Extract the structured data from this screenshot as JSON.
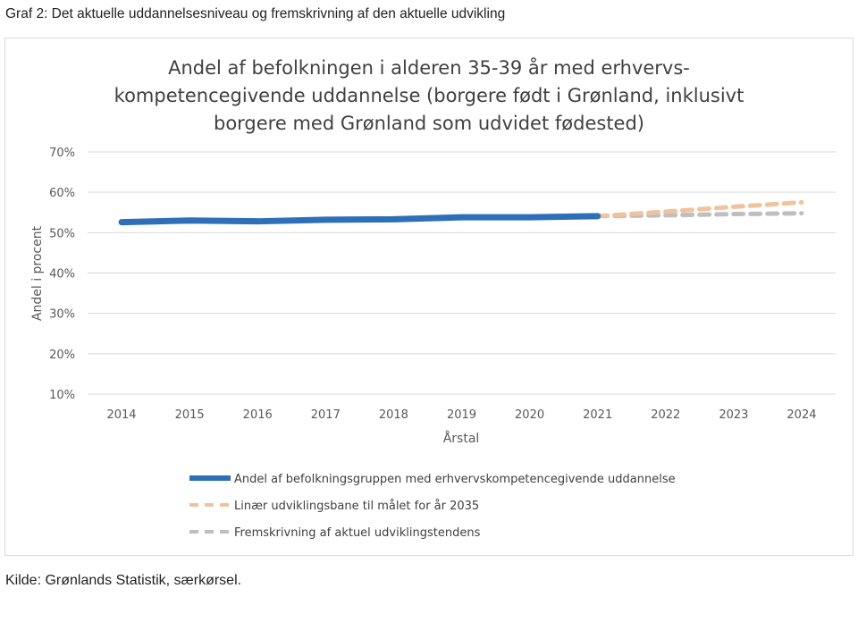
{
  "caption": "Graf 2: Det aktuelle uddannelsesniveau og fremskrivning af den aktuelle udvikling",
  "source": "Kilde: Grønlands Statistik, særkørsel.",
  "chart_data": {
    "type": "line",
    "title_lines": [
      "Andel af befolkningen i alderen 35-39 år med erhvervs-",
      "kompetencegivende uddannelse (borgere født i Grønland, inklusivt",
      "borgere med Grønland som udvidet fødested)"
    ],
    "xlabel": "Årstal",
    "ylabel": "Andel i procent",
    "categories": [
      "2014",
      "2015",
      "2016",
      "2017",
      "2018",
      "2019",
      "2020",
      "2021",
      "2022",
      "2023",
      "2024"
    ],
    "yticks": [
      "10%",
      "20%",
      "30%",
      "40%",
      "50%",
      "60%",
      "70%"
    ],
    "ylim": [
      10,
      70
    ],
    "grid": true,
    "legend_position": "bottom",
    "series": [
      {
        "name": "Andel af befolkningsgruppen med erhvervskompetencegivende uddannelse",
        "color": "#2e6fba",
        "style": "solid",
        "values": [
          52.6,
          53.0,
          52.8,
          53.2,
          53.3,
          53.8,
          53.8,
          54.1,
          null,
          null,
          null
        ]
      },
      {
        "name": "Linær udviklingsbane til målet for år 2035",
        "color": "#f0c39d",
        "style": "dashed",
        "values": [
          null,
          null,
          null,
          null,
          null,
          null,
          null,
          54.1,
          55.2,
          56.4,
          57.5
        ]
      },
      {
        "name": "Fremskrivning af aktuel udviklingstendens",
        "color": "#bfbfbf",
        "style": "dashed",
        "values": [
          null,
          null,
          null,
          null,
          null,
          null,
          null,
          54.1,
          54.3,
          54.6,
          54.8
        ]
      }
    ]
  }
}
